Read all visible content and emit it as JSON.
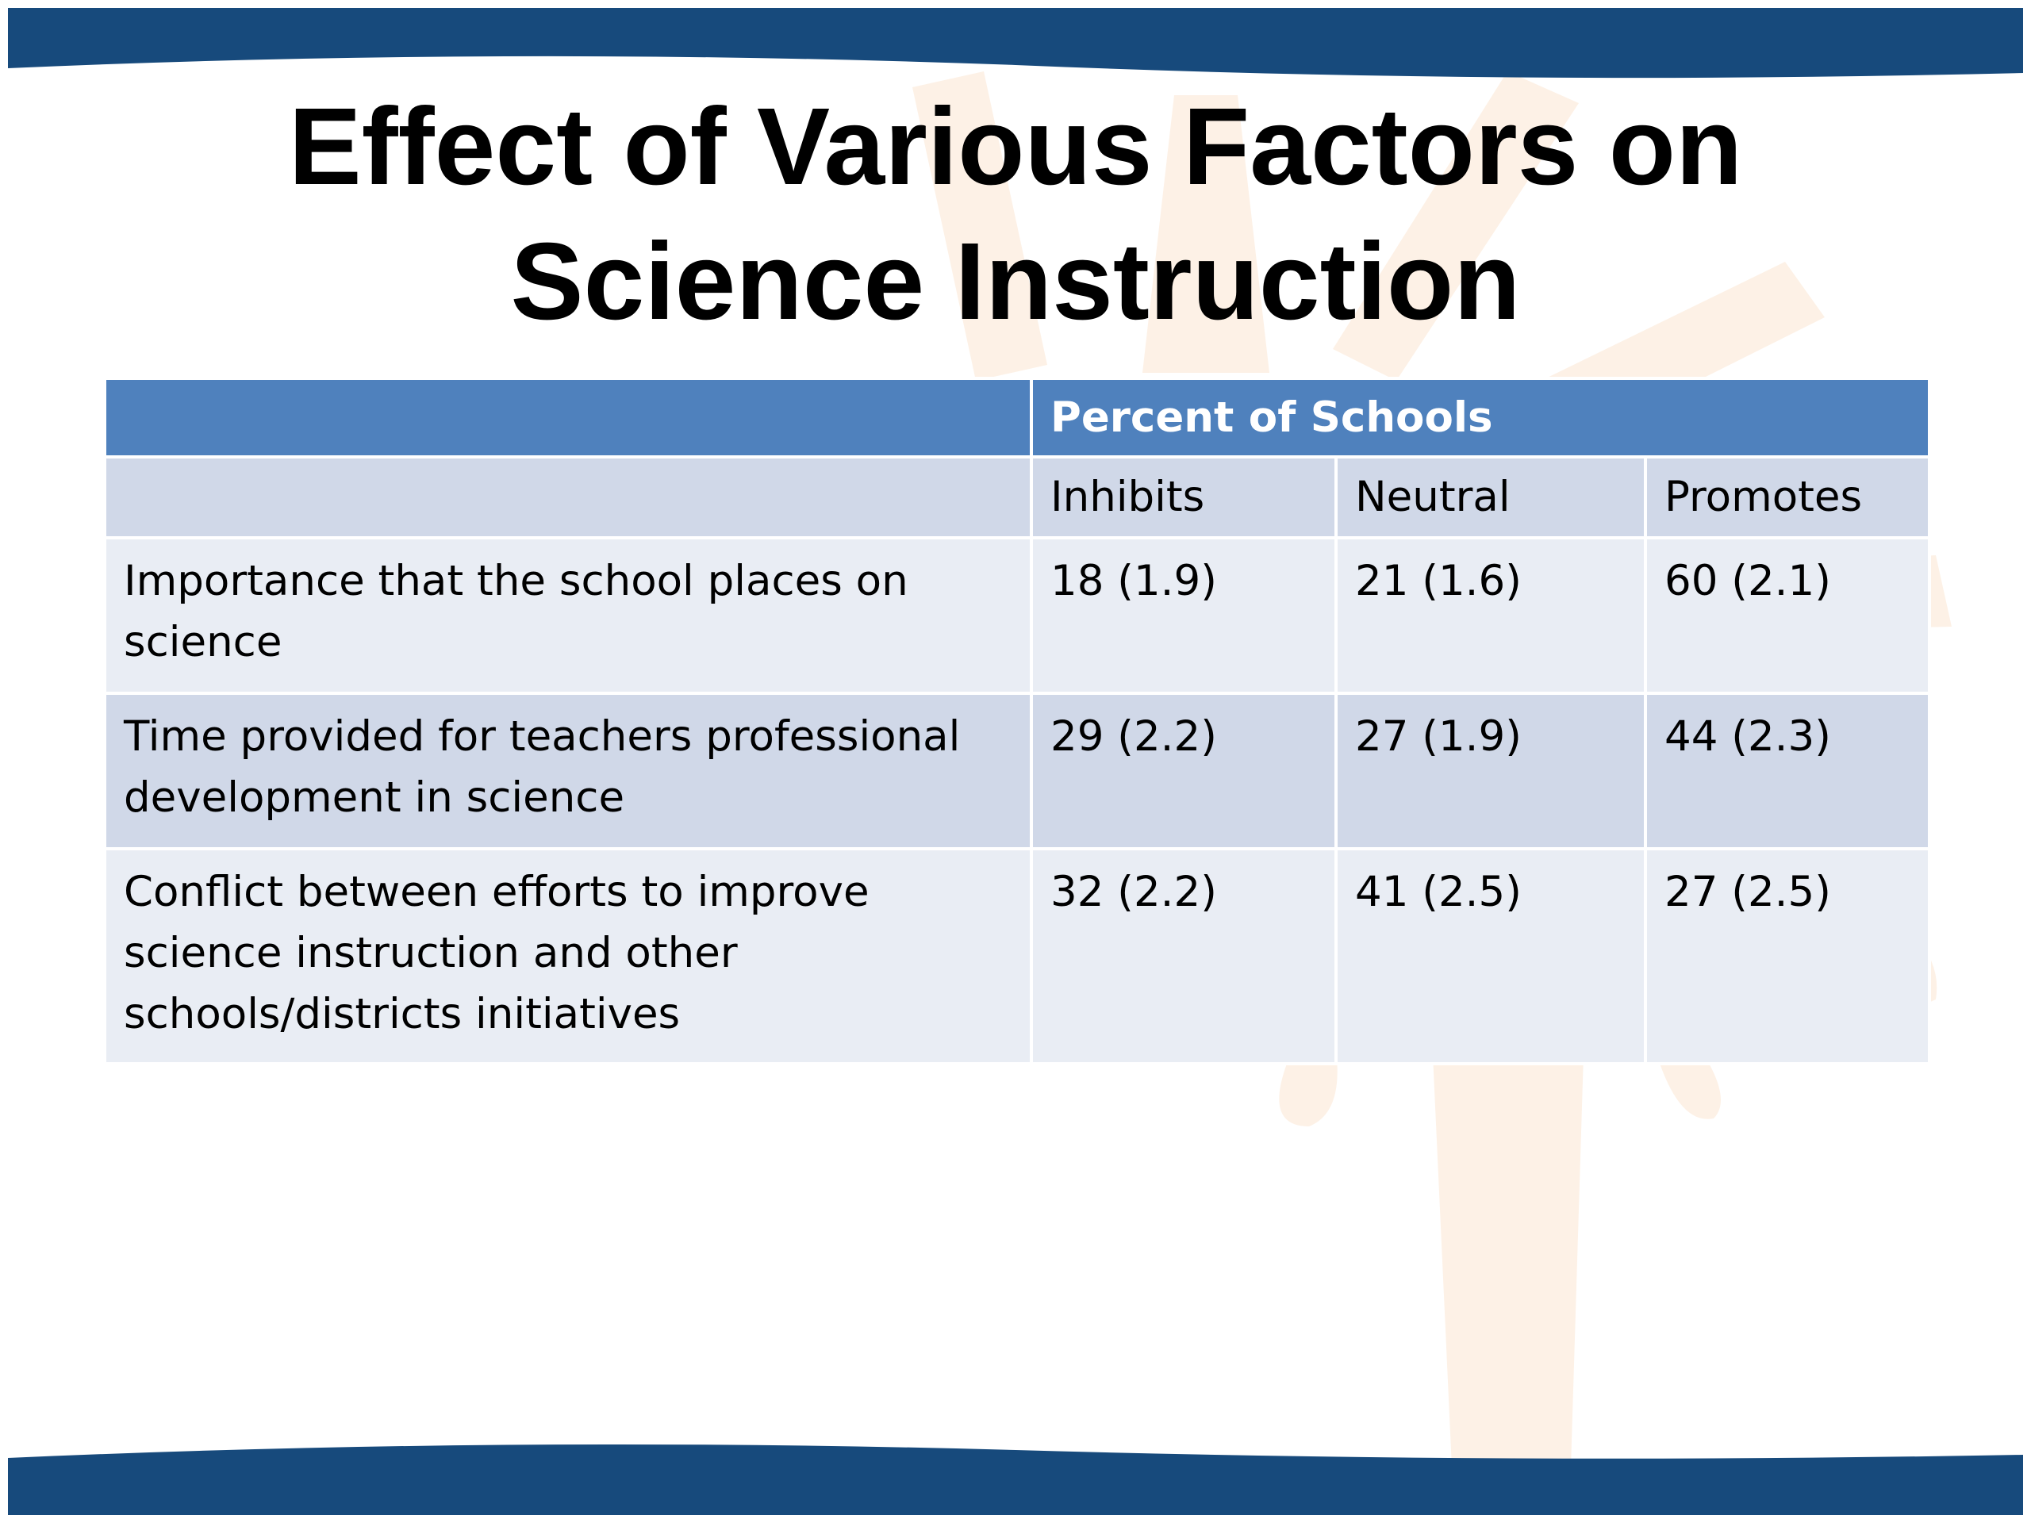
{
  "slide": {
    "title_line1": "Effect of Various Factors on",
    "title_line2": "Science Instruction"
  },
  "colors": {
    "band": "#174a7c",
    "header": "#4f81bd",
    "row_dark": "#d0d8e8",
    "row_light": "#e9edf4"
  },
  "table": {
    "group_header": "Percent of Schools",
    "columns": [
      "Inhibits",
      "Neutral",
      "Promotes"
    ],
    "rows": [
      {
        "factor": "Importance that the school places on science",
        "values": [
          "18 (1.9)",
          "21 (1.6)",
          "60 (2.1)"
        ]
      },
      {
        "factor": "Time provided for teachers professional development in science",
        "values": [
          "29 (2.2)",
          "27 (1.9)",
          "44 (2.3)"
        ]
      },
      {
        "factor": "Conflict between efforts to improve science instruction and other schools/districts initiatives",
        "values": [
          "32 (2.2)",
          "41 (2.5)",
          "27 (2.5)"
        ]
      }
    ]
  }
}
